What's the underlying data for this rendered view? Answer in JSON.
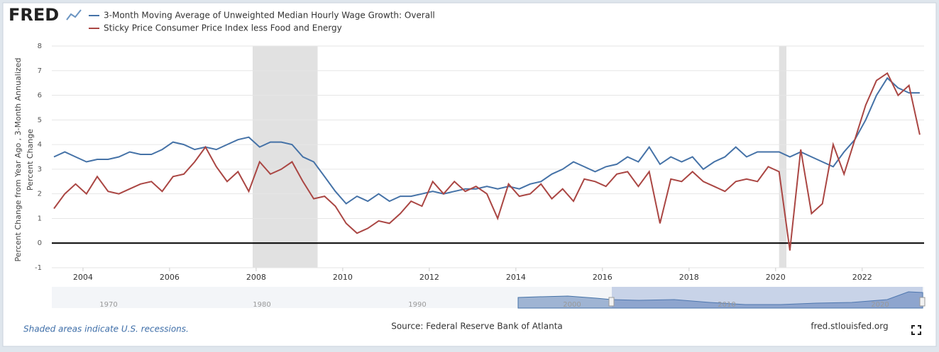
{
  "logo": "FRED",
  "chart_data": {
    "type": "line",
    "y_label": [
      "Percent Change from Year Ago , 3-Month Annualized",
      "Percent Change"
    ],
    "x": [
      2003.33,
      2003.58,
      2003.83,
      2004.08,
      2004.33,
      2004.58,
      2004.83,
      2005.08,
      2005.33,
      2005.58,
      2005.83,
      2006.08,
      2006.33,
      2006.58,
      2006.83,
      2007.08,
      2007.33,
      2007.58,
      2007.83,
      2008.08,
      2008.33,
      2008.58,
      2008.83,
      2009.08,
      2009.33,
      2009.58,
      2009.83,
      2010.08,
      2010.33,
      2010.58,
      2010.83,
      2011.08,
      2011.33,
      2011.58,
      2011.83,
      2012.08,
      2012.33,
      2012.58,
      2012.83,
      2013.08,
      2013.33,
      2013.58,
      2013.83,
      2014.08,
      2014.33,
      2014.58,
      2014.83,
      2015.08,
      2015.33,
      2015.58,
      2015.83,
      2016.08,
      2016.33,
      2016.58,
      2016.83,
      2017.08,
      2017.33,
      2017.58,
      2017.83,
      2018.08,
      2018.33,
      2018.58,
      2018.83,
      2019.08,
      2019.33,
      2019.58,
      2019.83,
      2020.08,
      2020.33,
      2020.58,
      2020.83,
      2021.08,
      2021.33,
      2021.58,
      2021.83,
      2022.08,
      2022.33,
      2022.58,
      2022.83,
      2023.08,
      2023.33
    ],
    "series": [
      {
        "name": "3-Month Moving Average of Unweighted Median Hourly Wage Growth: Overall",
        "color": "#4572a7",
        "values": [
          3.5,
          3.7,
          3.5,
          3.3,
          3.4,
          3.4,
          3.5,
          3.7,
          3.6,
          3.6,
          3.8,
          4.1,
          4.0,
          3.8,
          3.9,
          3.8,
          4.0,
          4.2,
          4.3,
          3.9,
          4.1,
          4.1,
          4.0,
          3.5,
          3.3,
          2.7,
          2.1,
          1.6,
          1.9,
          1.7,
          2.0,
          1.7,
          1.9,
          1.9,
          2.0,
          2.1,
          2.0,
          2.1,
          2.2,
          2.2,
          2.3,
          2.2,
          2.3,
          2.2,
          2.4,
          2.5,
          2.8,
          3.0,
          3.3,
          3.1,
          2.9,
          3.1,
          3.2,
          3.5,
          3.3,
          3.9,
          3.2,
          3.5,
          3.3,
          3.5,
          3.0,
          3.3,
          3.5,
          3.9,
          3.5,
          3.7,
          3.7,
          3.7,
          3.5,
          3.7,
          3.5,
          3.3,
          3.1,
          3.7,
          4.2,
          5.0,
          6.0,
          6.7,
          6.3,
          6.1,
          6.1
        ]
      },
      {
        "name": "Sticky Price Consumer Price Index less Food and Energy",
        "color": "#aa4643",
        "values": [
          1.4,
          2.0,
          2.4,
          2.0,
          2.7,
          2.1,
          2.0,
          2.2,
          2.4,
          2.5,
          2.1,
          2.7,
          2.8,
          3.3,
          3.9,
          3.1,
          2.5,
          2.9,
          2.1,
          3.3,
          2.8,
          3.0,
          3.3,
          2.5,
          1.8,
          1.9,
          1.5,
          0.8,
          0.4,
          0.6,
          0.9,
          0.8,
          1.2,
          1.7,
          1.5,
          2.5,
          2.0,
          2.5,
          2.1,
          2.3,
          2.0,
          1.0,
          2.4,
          1.9,
          2.0,
          2.4,
          1.8,
          2.2,
          1.7,
          2.6,
          2.5,
          2.3,
          2.8,
          2.9,
          2.3,
          2.9,
          0.8,
          2.6,
          2.5,
          2.9,
          2.5,
          2.3,
          2.1,
          2.5,
          2.6,
          2.5,
          3.1,
          2.9,
          -0.3,
          3.8,
          1.2,
          1.6,
          4.0,
          2.8,
          4.2,
          5.6,
          6.6,
          6.9,
          6.0,
          6.4,
          4.4
        ]
      }
    ],
    "recessions": [
      [
        2007.92,
        2009.42
      ],
      [
        2020.08,
        2020.25
      ]
    ],
    "xlim": [
      2003.28,
      2023.43
    ],
    "xticks": [
      2004,
      2006,
      2008,
      2010,
      2012,
      2014,
      2016,
      2018,
      2020,
      2022
    ],
    "ylim": [
      -1,
      8
    ],
    "yticks": [
      -1,
      0,
      1,
      2,
      3,
      4,
      5,
      6,
      7,
      8
    ],
    "grid": true
  },
  "navigator": {
    "labels": [
      "1970",
      "1980",
      "1990",
      "2000",
      "2010",
      "2020"
    ]
  },
  "footer": {
    "note": "Shaded areas indicate U.S. recessions.",
    "source": "Source: Federal Reserve Bank of Atlanta",
    "site": "fred.stlouisfed.org"
  }
}
